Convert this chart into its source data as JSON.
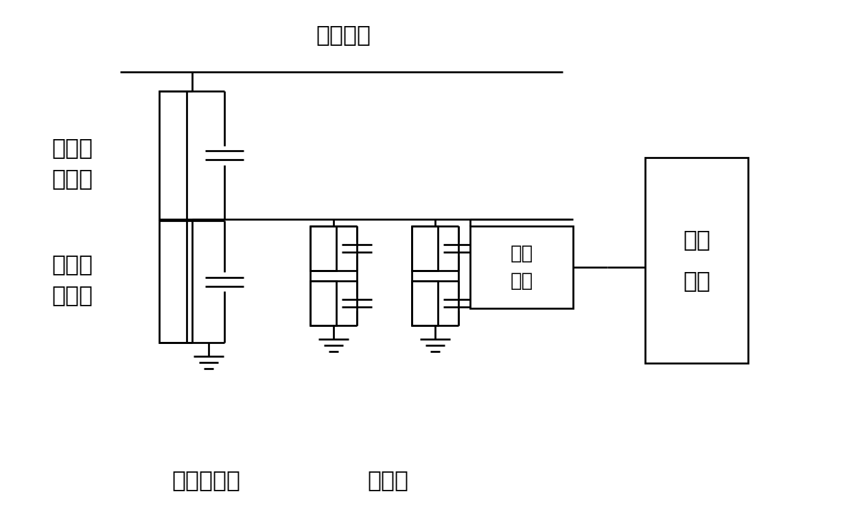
{
  "background_color": "#ffffff",
  "line_color": "#000000",
  "line_width": 2.0,
  "text_color": "#000000",
  "labels": {
    "primary_voltage": "一次电压",
    "high_arm_1": "分压器",
    "high_arm_2": "高压臂",
    "low_arm_1": "分压器",
    "low_arm_2": "低压臂",
    "dc_divider": "直流分压器",
    "resistor_box": "电阵盒",
    "remote_module_1": "远端",
    "remote_module_2": "模块",
    "merge_unit_1": "合并",
    "merge_unit_2": "单元"
  },
  "font_size_large": 24,
  "font_size_medium": 20,
  "font_size_small": 16
}
